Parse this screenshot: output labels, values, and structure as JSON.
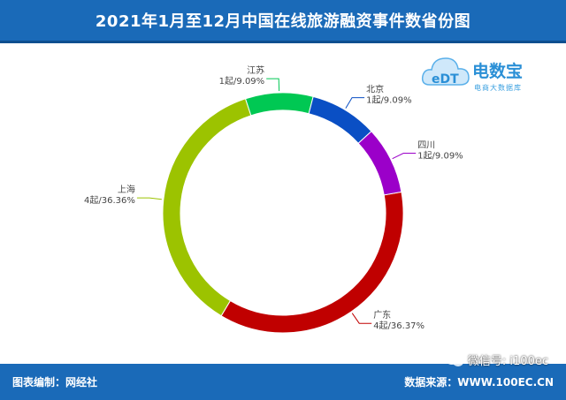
{
  "header": {
    "title": "2021年1月至12月中国在线旅游融资事件数省份图"
  },
  "footer": {
    "left": "图表编制：网经社",
    "right": "数据来源：WWW.100EC.CN",
    "wechat": "微信号: i100ec"
  },
  "logo": {
    "name": "电数宝",
    "sub": "电商大数据库",
    "mark": "eDT"
  },
  "colors": {
    "header": "#1a6ab8",
    "guangdong": "#c00000",
    "shanghai": "#9cc300",
    "jiangsu": "#00c853",
    "beijing": "#0a4fc4",
    "sichuan": "#9b00c9"
  },
  "chart_data": {
    "type": "pie",
    "variant": "donut",
    "title": "2021年1月至12月中国在线旅游融资事件数省份图",
    "slices": [
      {
        "name": "广东",
        "value": 4,
        "label": "4起/36.37%",
        "color": "#c00000"
      },
      {
        "name": "上海",
        "value": 4,
        "label": "4起/36.36%",
        "color": "#9cc300"
      },
      {
        "name": "江苏",
        "value": 1,
        "label": "1起/9.09%",
        "color": "#00c853"
      },
      {
        "name": "北京",
        "value": 1,
        "label": "1起/9.09%",
        "color": "#0a4fc4"
      },
      {
        "name": "四川",
        "value": 1,
        "label": "1起/9.09%",
        "color": "#9b00c9"
      }
    ]
  }
}
